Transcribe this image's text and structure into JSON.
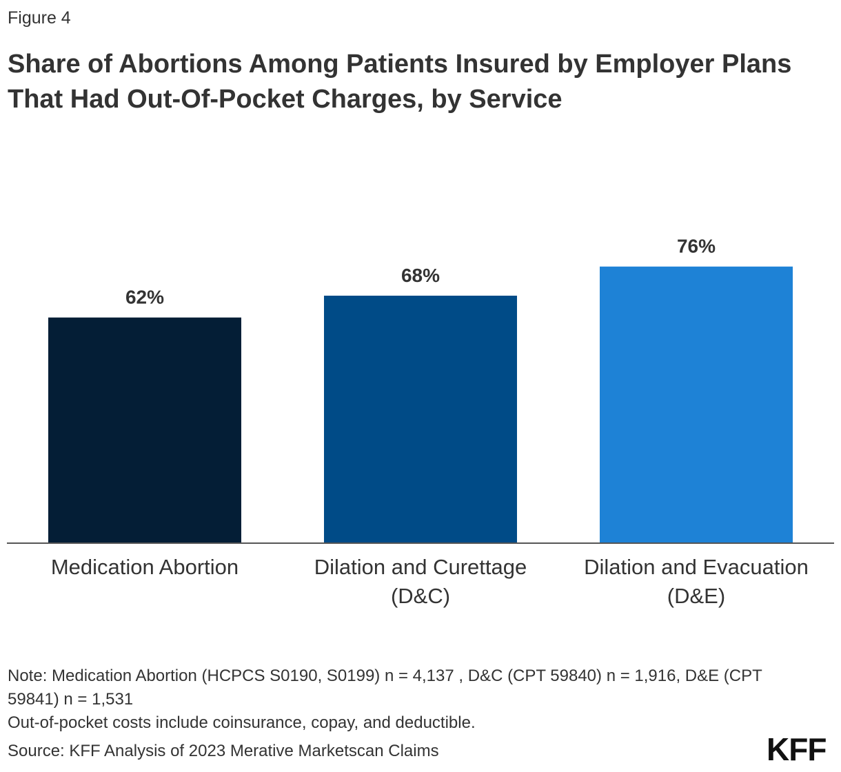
{
  "figure_label": "Figure 4",
  "title": "Share of Abortions Among Patients Insured by Employer Plans That Had Out-Of-Pocket Charges, by Service",
  "chart_data": {
    "type": "bar",
    "categories": [
      [
        "Medication Abortion"
      ],
      [
        "Dilation and Curettage",
        "(D&C)"
      ],
      [
        "Dilation and Evacuation",
        "(D&E)"
      ]
    ],
    "values": [
      62,
      68,
      76
    ],
    "value_labels": [
      "62%",
      "68%",
      "76%"
    ],
    "colors": [
      "#041e36",
      "#004b87",
      "#1e82d6"
    ],
    "ylim": [
      0,
      100
    ],
    "grid": false,
    "legend": "none",
    "xlabel": "",
    "ylabel": ""
  },
  "notes": [
    "Note: Medication Abortion (HCPCS S0190, S0199) n = 4,137 , D&C (CPT 59840) n = 1,916, D&E (CPT 59841) n = 1,531",
    "Out-of-pocket costs include coinsurance, copay, and deductible."
  ],
  "source": "Source: KFF Analysis of 2023 Merative Marketscan Claims",
  "logo": "KFF"
}
